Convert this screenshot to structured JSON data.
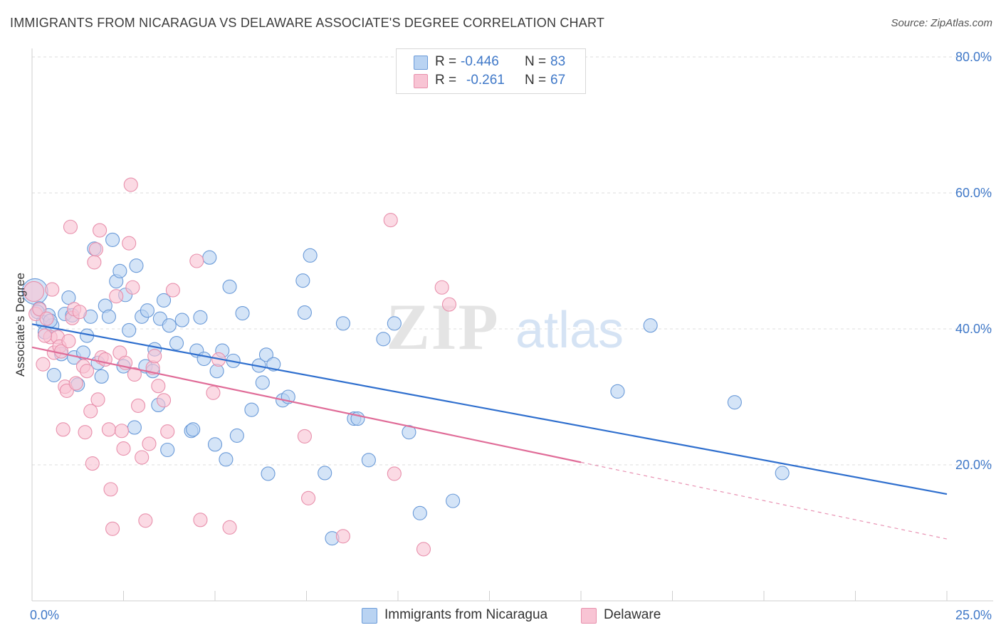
{
  "title": "IMMIGRANTS FROM NICARAGUA VS DELAWARE ASSOCIATE'S DEGREE CORRELATION CHART",
  "source": "Source: ZipAtlas.com",
  "watermark": {
    "zip": "ZIP",
    "atlas": "atlas"
  },
  "legend": {
    "rows": [
      {
        "r_label": "R =",
        "r_value": "-0.446",
        "n_label": "N =",
        "n_value": "83"
      },
      {
        "r_label": "R =",
        "r_value": "-0.261",
        "n_label": "N =",
        "n_value": "67"
      }
    ]
  },
  "bottom_legend": {
    "series1": "Immigrants from Nicaragua",
    "series2": "Delaware"
  },
  "colors": {
    "blue_fill": "#b9d3f2",
    "blue_stroke": "#6a9ad8",
    "blue_line": "#2f6fce",
    "pink_fill": "#f8c4d4",
    "pink_stroke": "#e890ac",
    "pink_line": "#e06c98",
    "axis_text": "#3f78c8",
    "grid": "#dcdcdc"
  },
  "chart_data": {
    "type": "scatter",
    "title": "IMMIGRANTS FROM NICARAGUA VS DELAWARE ASSOCIATE'S DEGREE CORRELATION CHART",
    "xlabel": "",
    "ylabel": "Associate's Degree",
    "xlim": [
      0,
      25
    ],
    "ylim": [
      0,
      80
    ],
    "x_tick_labels": [
      "0.0%",
      "25.0%"
    ],
    "y_ticks": [
      20,
      40,
      60,
      80
    ],
    "y_tick_labels": [
      "20.0%",
      "40.0%",
      "60.0%",
      "80.0%"
    ],
    "grid": true,
    "legend_position": "top-center",
    "series": [
      {
        "name": "Immigrants from Nicaragua",
        "color": "#b9d3f2",
        "trend": {
          "x": [
            0,
            25
          ],
          "y": [
            40.7,
            15.7
          ],
          "dashed_after": null
        },
        "points": [
          [
            0.08,
            45.5
          ],
          [
            0.2,
            43.0
          ],
          [
            0.3,
            41.0
          ],
          [
            0.35,
            39.5
          ],
          [
            0.45,
            42.0
          ],
          [
            0.55,
            40.5
          ],
          [
            0.6,
            33.2
          ],
          [
            0.8,
            36.3
          ],
          [
            0.9,
            42.2
          ],
          [
            1.0,
            44.6
          ],
          [
            1.1,
            42.0
          ],
          [
            1.15,
            35.8
          ],
          [
            1.25,
            31.8
          ],
          [
            1.4,
            36.5
          ],
          [
            1.5,
            39.0
          ],
          [
            1.6,
            41.8
          ],
          [
            1.7,
            51.8
          ],
          [
            1.8,
            35.0
          ],
          [
            1.9,
            33.0
          ],
          [
            2.0,
            43.4
          ],
          [
            2.1,
            41.8
          ],
          [
            2.2,
            53.1
          ],
          [
            2.3,
            47.0
          ],
          [
            2.4,
            48.5
          ],
          [
            2.5,
            34.5
          ],
          [
            2.55,
            45.0
          ],
          [
            2.65,
            39.8
          ],
          [
            2.8,
            25.5
          ],
          [
            2.85,
            49.3
          ],
          [
            3.0,
            41.8
          ],
          [
            3.1,
            34.5
          ],
          [
            3.15,
            42.7
          ],
          [
            3.3,
            33.8
          ],
          [
            3.35,
            37.0
          ],
          [
            3.45,
            28.8
          ],
          [
            3.5,
            41.5
          ],
          [
            3.6,
            44.2
          ],
          [
            3.7,
            22.2
          ],
          [
            3.75,
            40.5
          ],
          [
            3.95,
            37.9
          ],
          [
            4.1,
            41.3
          ],
          [
            4.35,
            25.0
          ],
          [
            4.4,
            25.2
          ],
          [
            4.5,
            36.8
          ],
          [
            4.6,
            41.7
          ],
          [
            4.7,
            35.6
          ],
          [
            4.85,
            50.5
          ],
          [
            5.0,
            23.0
          ],
          [
            5.05,
            33.8
          ],
          [
            5.2,
            36.8
          ],
          [
            5.3,
            20.8
          ],
          [
            5.4,
            46.2
          ],
          [
            5.5,
            35.3
          ],
          [
            5.6,
            24.3
          ],
          [
            5.75,
            42.3
          ],
          [
            6.0,
            28.1
          ],
          [
            6.2,
            34.6
          ],
          [
            6.3,
            32.1
          ],
          [
            6.4,
            36.2
          ],
          [
            6.45,
            18.7
          ],
          [
            6.6,
            34.8
          ],
          [
            6.85,
            29.5
          ],
          [
            7.0,
            30.0
          ],
          [
            7.4,
            47.1
          ],
          [
            7.45,
            42.4
          ],
          [
            7.6,
            50.8
          ],
          [
            8.0,
            18.8
          ],
          [
            8.2,
            9.2
          ],
          [
            8.5,
            40.8
          ],
          [
            8.8,
            26.8
          ],
          [
            8.9,
            26.8
          ],
          [
            9.2,
            20.7
          ],
          [
            9.6,
            38.5
          ],
          [
            9.9,
            40.8
          ],
          [
            10.3,
            24.8
          ],
          [
            10.6,
            12.9
          ],
          [
            11.5,
            14.7
          ],
          [
            16.0,
            30.8
          ],
          [
            16.9,
            40.5
          ],
          [
            19.2,
            29.2
          ],
          [
            20.5,
            18.8
          ],
          [
            0.15,
            42.5
          ],
          [
            0.5,
            41.2
          ]
        ]
      },
      {
        "name": "Delaware",
        "color": "#f8c4d4",
        "trend": {
          "x": [
            0,
            25
          ],
          "y": [
            37.3,
            9.1
          ],
          "solid_until": 15
        },
        "points": [
          [
            0.05,
            45.5
          ],
          [
            0.1,
            42.2
          ],
          [
            0.2,
            42.9
          ],
          [
            0.3,
            34.8
          ],
          [
            0.4,
            41.5
          ],
          [
            0.5,
            38.8
          ],
          [
            0.55,
            45.8
          ],
          [
            0.6,
            36.5
          ],
          [
            0.7,
            38.8
          ],
          [
            0.75,
            37.4
          ],
          [
            0.8,
            36.7
          ],
          [
            0.85,
            25.2
          ],
          [
            0.9,
            31.5
          ],
          [
            0.95,
            30.9
          ],
          [
            1.0,
            38.2
          ],
          [
            1.05,
            55.0
          ],
          [
            1.1,
            41.6
          ],
          [
            1.15,
            42.9
          ],
          [
            1.2,
            32.0
          ],
          [
            1.3,
            42.5
          ],
          [
            1.4,
            34.5
          ],
          [
            1.45,
            24.8
          ],
          [
            1.5,
            33.8
          ],
          [
            1.6,
            27.9
          ],
          [
            1.65,
            20.2
          ],
          [
            1.7,
            49.8
          ],
          [
            1.75,
            51.7
          ],
          [
            1.8,
            29.6
          ],
          [
            1.85,
            54.5
          ],
          [
            1.9,
            35.8
          ],
          [
            2.0,
            35.5
          ],
          [
            2.1,
            25.2
          ],
          [
            2.15,
            16.4
          ],
          [
            2.2,
            10.6
          ],
          [
            2.3,
            44.8
          ],
          [
            2.4,
            36.5
          ],
          [
            2.45,
            25.0
          ],
          [
            2.5,
            22.4
          ],
          [
            2.55,
            35.0
          ],
          [
            2.65,
            52.6
          ],
          [
            2.7,
            61.2
          ],
          [
            2.75,
            46.1
          ],
          [
            2.8,
            33.3
          ],
          [
            2.9,
            28.7
          ],
          [
            3.0,
            21.1
          ],
          [
            3.1,
            11.8
          ],
          [
            3.2,
            23.1
          ],
          [
            3.3,
            34.3
          ],
          [
            3.35,
            36.0
          ],
          [
            3.45,
            31.6
          ],
          [
            3.6,
            29.5
          ],
          [
            3.7,
            24.9
          ],
          [
            3.85,
            45.7
          ],
          [
            4.5,
            50.0
          ],
          [
            4.6,
            11.9
          ],
          [
            4.95,
            30.6
          ],
          [
            5.1,
            35.5
          ],
          [
            5.4,
            10.8
          ],
          [
            7.45,
            24.2
          ],
          [
            7.55,
            15.1
          ],
          [
            8.5,
            9.5
          ],
          [
            9.8,
            56.0
          ],
          [
            9.9,
            18.7
          ],
          [
            10.7,
            7.6
          ],
          [
            11.2,
            46.1
          ],
          [
            11.4,
            43.6
          ],
          [
            0.35,
            39.0
          ]
        ]
      }
    ]
  }
}
